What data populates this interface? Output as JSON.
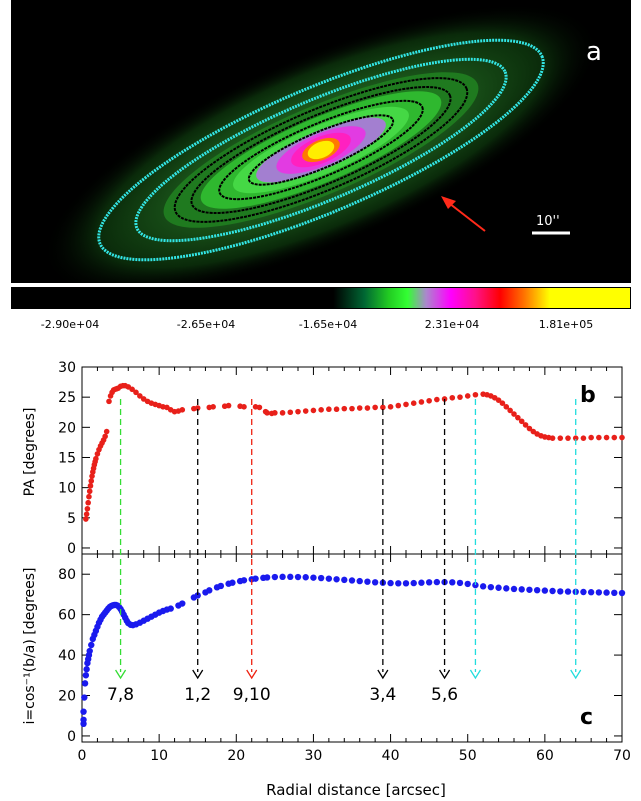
{
  "panel_a": {
    "label": "a",
    "scale_bar": "10''",
    "colorbar_ticks": [
      "-2.90e+04",
      "-2.65e+04",
      "-1.65e+04",
      "2.31e+04",
      "1.81e+05"
    ],
    "colors": {
      "ellipse_outer": "#33e6e6",
      "contour": "#000000",
      "arrow": "#ff2a1a"
    }
  },
  "chart_data": [
    {
      "type": "scatter",
      "panel": "b",
      "ylabel": "PA [degrees]",
      "xlim": [
        0,
        70
      ],
      "ylim": [
        -1,
        30
      ],
      "yticks": [
        0,
        5,
        10,
        15,
        20,
        25,
        30
      ],
      "color": "#e8201a",
      "points": [
        [
          0.5,
          4.8
        ],
        [
          0.6,
          5.6
        ],
        [
          0.7,
          6.5
        ],
        [
          0.8,
          7.5
        ],
        [
          0.9,
          8.5
        ],
        [
          1.0,
          9.4
        ],
        [
          1.1,
          10.3
        ],
        [
          1.2,
          11.1
        ],
        [
          1.3,
          11.9
        ],
        [
          1.4,
          12.6
        ],
        [
          1.5,
          13.2
        ],
        [
          1.6,
          13.8
        ],
        [
          1.7,
          14.3
        ],
        [
          1.8,
          14.8
        ],
        [
          2.0,
          15.6
        ],
        [
          2.2,
          16.3
        ],
        [
          2.4,
          16.9
        ],
        [
          2.6,
          17.4
        ],
        [
          2.8,
          17.9
        ],
        [
          3.0,
          18.5
        ],
        [
          3.2,
          19.3
        ],
        [
          3.5,
          24.3
        ],
        [
          3.7,
          25.2
        ],
        [
          3.9,
          25.8
        ],
        [
          4.1,
          26.2
        ],
        [
          4.3,
          26.3
        ],
        [
          4.5,
          26.4
        ],
        [
          4.7,
          26.5
        ],
        [
          5.0,
          26.8
        ],
        [
          5.3,
          26.9
        ],
        [
          5.6,
          26.9
        ],
        [
          6.0,
          26.7
        ],
        [
          6.5,
          26.3
        ],
        [
          7.0,
          25.8
        ],
        [
          7.5,
          25.2
        ],
        [
          8.0,
          24.7
        ],
        [
          8.5,
          24.3
        ],
        [
          9.0,
          24.0
        ],
        [
          9.5,
          23.8
        ],
        [
          10.0,
          23.6
        ],
        [
          10.5,
          23.4
        ],
        [
          11.0,
          23.3
        ],
        [
          11.5,
          22.9
        ],
        [
          12.0,
          22.6
        ],
        [
          12.5,
          22.7
        ],
        [
          13.0,
          22.9
        ],
        [
          14.5,
          23.1
        ],
        [
          15.0,
          23.2
        ],
        [
          16.5,
          23.3
        ],
        [
          17.0,
          23.4
        ],
        [
          18.5,
          23.5
        ],
        [
          19.0,
          23.6
        ],
        [
          20.5,
          23.5
        ],
        [
          21.0,
          23.4
        ],
        [
          22.5,
          23.4
        ],
        [
          23.0,
          23.3
        ],
        [
          23.8,
          22.6
        ],
        [
          24.0,
          22.4
        ],
        [
          24.6,
          22.3
        ],
        [
          25.0,
          22.4
        ],
        [
          26,
          22.4
        ],
        [
          27,
          22.5
        ],
        [
          28,
          22.6
        ],
        [
          29,
          22.7
        ],
        [
          30,
          22.8
        ],
        [
          31,
          22.9
        ],
        [
          32,
          23.0
        ],
        [
          33,
          23.0
        ],
        [
          34,
          23.1
        ],
        [
          35,
          23.1
        ],
        [
          36,
          23.2
        ],
        [
          37,
          23.2
        ],
        [
          38,
          23.3
        ],
        [
          39,
          23.3
        ],
        [
          40,
          23.4
        ],
        [
          41,
          23.6
        ],
        [
          42,
          23.8
        ],
        [
          43,
          24.0
        ],
        [
          44,
          24.2
        ],
        [
          45,
          24.4
        ],
        [
          46,
          24.6
        ],
        [
          47,
          24.7
        ],
        [
          48,
          24.9
        ],
        [
          49,
          25.0
        ],
        [
          50,
          25.2
        ],
        [
          51,
          25.4
        ],
        [
          52,
          25.5
        ],
        [
          52.5,
          25.4
        ],
        [
          53,
          25.2
        ],
        [
          53.5,
          24.9
        ],
        [
          54,
          24.5
        ],
        [
          54.5,
          24.0
        ],
        [
          55,
          23.4
        ],
        [
          55.5,
          22.8
        ],
        [
          56,
          22.2
        ],
        [
          56.5,
          21.6
        ],
        [
          57,
          21.0
        ],
        [
          57.5,
          20.4
        ],
        [
          58,
          19.8
        ],
        [
          58.5,
          19.3
        ],
        [
          59,
          18.9
        ],
        [
          59.5,
          18.6
        ],
        [
          60,
          18.4
        ],
        [
          60.5,
          18.3
        ],
        [
          61,
          18.2
        ],
        [
          62,
          18.2
        ],
        [
          63,
          18.2
        ],
        [
          64,
          18.2
        ],
        [
          65,
          18.2
        ],
        [
          66,
          18.3
        ],
        [
          67,
          18.3
        ],
        [
          68,
          18.3
        ],
        [
          69,
          18.3
        ],
        [
          70,
          18.3
        ]
      ]
    },
    {
      "type": "scatter",
      "panel": "c",
      "xlabel": "Radial distance [arcsec]",
      "ylabel": "i=cos⁻¹(b/a) [degrees]",
      "xlim": [
        0,
        70
      ],
      "ylim": [
        -3,
        90
      ],
      "xticks": [
        0,
        10,
        20,
        30,
        40,
        50,
        60,
        70
      ],
      "yticks": [
        0,
        20,
        40,
        60,
        80
      ],
      "color": "#1a1aee",
      "points": [
        [
          0.2,
          6
        ],
        [
          0.2,
          8
        ],
        [
          0.2,
          12
        ],
        [
          0.3,
          19
        ],
        [
          0.4,
          26
        ],
        [
          0.5,
          30
        ],
        [
          0.6,
          33
        ],
        [
          0.7,
          36
        ],
        [
          0.8,
          38
        ],
        [
          0.9,
          40
        ],
        [
          1.0,
          42
        ],
        [
          1.2,
          45
        ],
        [
          1.4,
          48
        ],
        [
          1.6,
          50
        ],
        [
          1.8,
          52
        ],
        [
          2.0,
          54
        ],
        [
          2.2,
          56
        ],
        [
          2.4,
          57.5
        ],
        [
          2.6,
          59
        ],
        [
          2.8,
          60
        ],
        [
          3.0,
          61
        ],
        [
          3.2,
          62
        ],
        [
          3.4,
          63
        ],
        [
          3.6,
          63.8
        ],
        [
          3.8,
          64.3
        ],
        [
          4.0,
          64.6
        ],
        [
          4.2,
          64.8
        ],
        [
          4.4,
          64.8
        ],
        [
          4.6,
          64.5
        ],
        [
          4.8,
          63.8
        ],
        [
          5.0,
          62.8
        ],
        [
          5.2,
          61.5
        ],
        [
          5.4,
          60
        ],
        [
          5.6,
          58.5
        ],
        [
          5.8,
          57
        ],
        [
          6.0,
          55.8
        ],
        [
          6.3,
          55
        ],
        [
          6.6,
          54.8
        ],
        [
          7.0,
          55.2
        ],
        [
          7.5,
          56
        ],
        [
          8.0,
          57
        ],
        [
          8.5,
          58
        ],
        [
          9.0,
          59
        ],
        [
          9.5,
          60
        ],
        [
          10,
          61
        ],
        [
          10.5,
          61.8
        ],
        [
          11,
          62.5
        ],
        [
          11.5,
          63
        ],
        [
          12.5,
          64.5
        ],
        [
          13,
          65.5
        ],
        [
          14.5,
          68.5
        ],
        [
          15,
          69.5
        ],
        [
          16,
          71
        ],
        [
          16.5,
          72
        ],
        [
          17.5,
          73.5
        ],
        [
          18,
          74.2
        ],
        [
          19,
          75.3
        ],
        [
          19.5,
          75.8
        ],
        [
          20.5,
          76.6
        ],
        [
          21,
          77
        ],
        [
          22,
          77.5
        ],
        [
          22.5,
          77.8
        ],
        [
          23.5,
          78.2
        ],
        [
          24,
          78.4
        ],
        [
          25,
          78.6
        ],
        [
          26,
          78.7
        ],
        [
          27,
          78.7
        ],
        [
          28,
          78.6
        ],
        [
          29,
          78.5
        ],
        [
          30,
          78.3
        ],
        [
          31,
          78.1
        ],
        [
          32,
          77.8
        ],
        [
          33,
          77.5
        ],
        [
          34,
          77.2
        ],
        [
          35,
          76.9
        ],
        [
          36,
          76.6
        ],
        [
          37,
          76.3
        ],
        [
          38,
          76.0
        ],
        [
          39,
          75.8
        ],
        [
          40,
          75.6
        ],
        [
          41,
          75.5
        ],
        [
          42,
          75.5
        ],
        [
          43,
          75.6
        ],
        [
          44,
          75.8
        ],
        [
          45,
          76.0
        ],
        [
          46,
          76.1
        ],
        [
          47,
          76.1
        ],
        [
          48,
          76.0
        ],
        [
          49,
          75.7
        ],
        [
          50,
          75.2
        ],
        [
          51,
          74.6
        ],
        [
          52,
          74.0
        ],
        [
          53,
          73.6
        ],
        [
          54,
          73.3
        ],
        [
          55,
          73.0
        ],
        [
          56,
          72.7
        ],
        [
          57,
          72.5
        ],
        [
          58,
          72.3
        ],
        [
          59,
          72.1
        ],
        [
          60,
          71.9
        ],
        [
          61,
          71.7
        ],
        [
          62,
          71.5
        ],
        [
          63,
          71.4
        ],
        [
          64,
          71.3
        ],
        [
          65,
          71.2
        ],
        [
          66,
          71.1
        ],
        [
          67,
          71.0
        ],
        [
          68,
          70.9
        ],
        [
          69,
          70.8
        ],
        [
          70,
          70.7
        ]
      ]
    }
  ],
  "markers": [
    {
      "x": 5,
      "label": "7,8",
      "color": "#33dd33"
    },
    {
      "x": 15,
      "label": "1,2",
      "color": "#000000"
    },
    {
      "x": 22,
      "label": "9,10",
      "color": "#ee2211"
    },
    {
      "x": 39,
      "label": "3,4",
      "color": "#000000"
    },
    {
      "x": 47,
      "label": "5,6",
      "color": "#000000"
    },
    {
      "x": 51,
      "label": "",
      "color": "#22dddd"
    },
    {
      "x": 64,
      "label": "",
      "color": "#22dddd"
    }
  ],
  "panel_labels": {
    "b": "b",
    "c": "c"
  }
}
